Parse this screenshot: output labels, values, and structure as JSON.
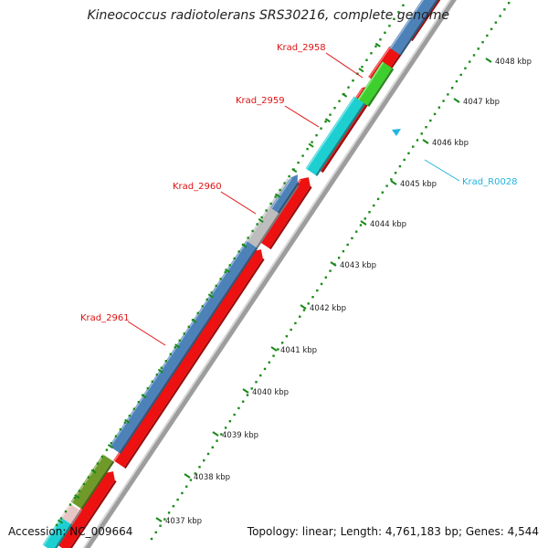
{
  "title": "Kineococcus radiotolerans SRS30216, complete genome",
  "footer": {
    "accession_label": "Accession:",
    "accession": "NC_009664",
    "topology_label": "Topology:",
    "topology": "linear",
    "length_label": "Length:",
    "length": "4,761,183 bp",
    "genes_label": "Genes:",
    "genes": "4,544"
  },
  "scale_labels": [
    "4037 kbp",
    "4038 kbp",
    "4039 kbp",
    "4040 kbp",
    "4041 kbp",
    "4042 kbp",
    "4043 kbp",
    "4044 kbp",
    "4045 kbp",
    "4046 kbp",
    "4047 kbp",
    "4048 kbp"
  ],
  "gene_labels": [
    {
      "text": "Krad_2958",
      "color": "#dd1111"
    },
    {
      "text": "Krad_2959",
      "color": "#dd1111"
    },
    {
      "text": "Krad_2960",
      "color": "#dd1111"
    },
    {
      "text": "Krad_2961",
      "color": "#dd1111"
    },
    {
      "text": "Krad_R0028",
      "color": "#22b4e0"
    }
  ],
  "colors": {
    "cds": "#ee1111",
    "blue_feature": "#4d82b8",
    "cyan_feature": "#1ecfd2",
    "green_feature": "#3ecf2e",
    "olive_feature": "#6f9a2a",
    "grey_feature": "#bdbdbd",
    "rna_marker": "#22b4e0",
    "ticks": "#1a8a1a"
  }
}
